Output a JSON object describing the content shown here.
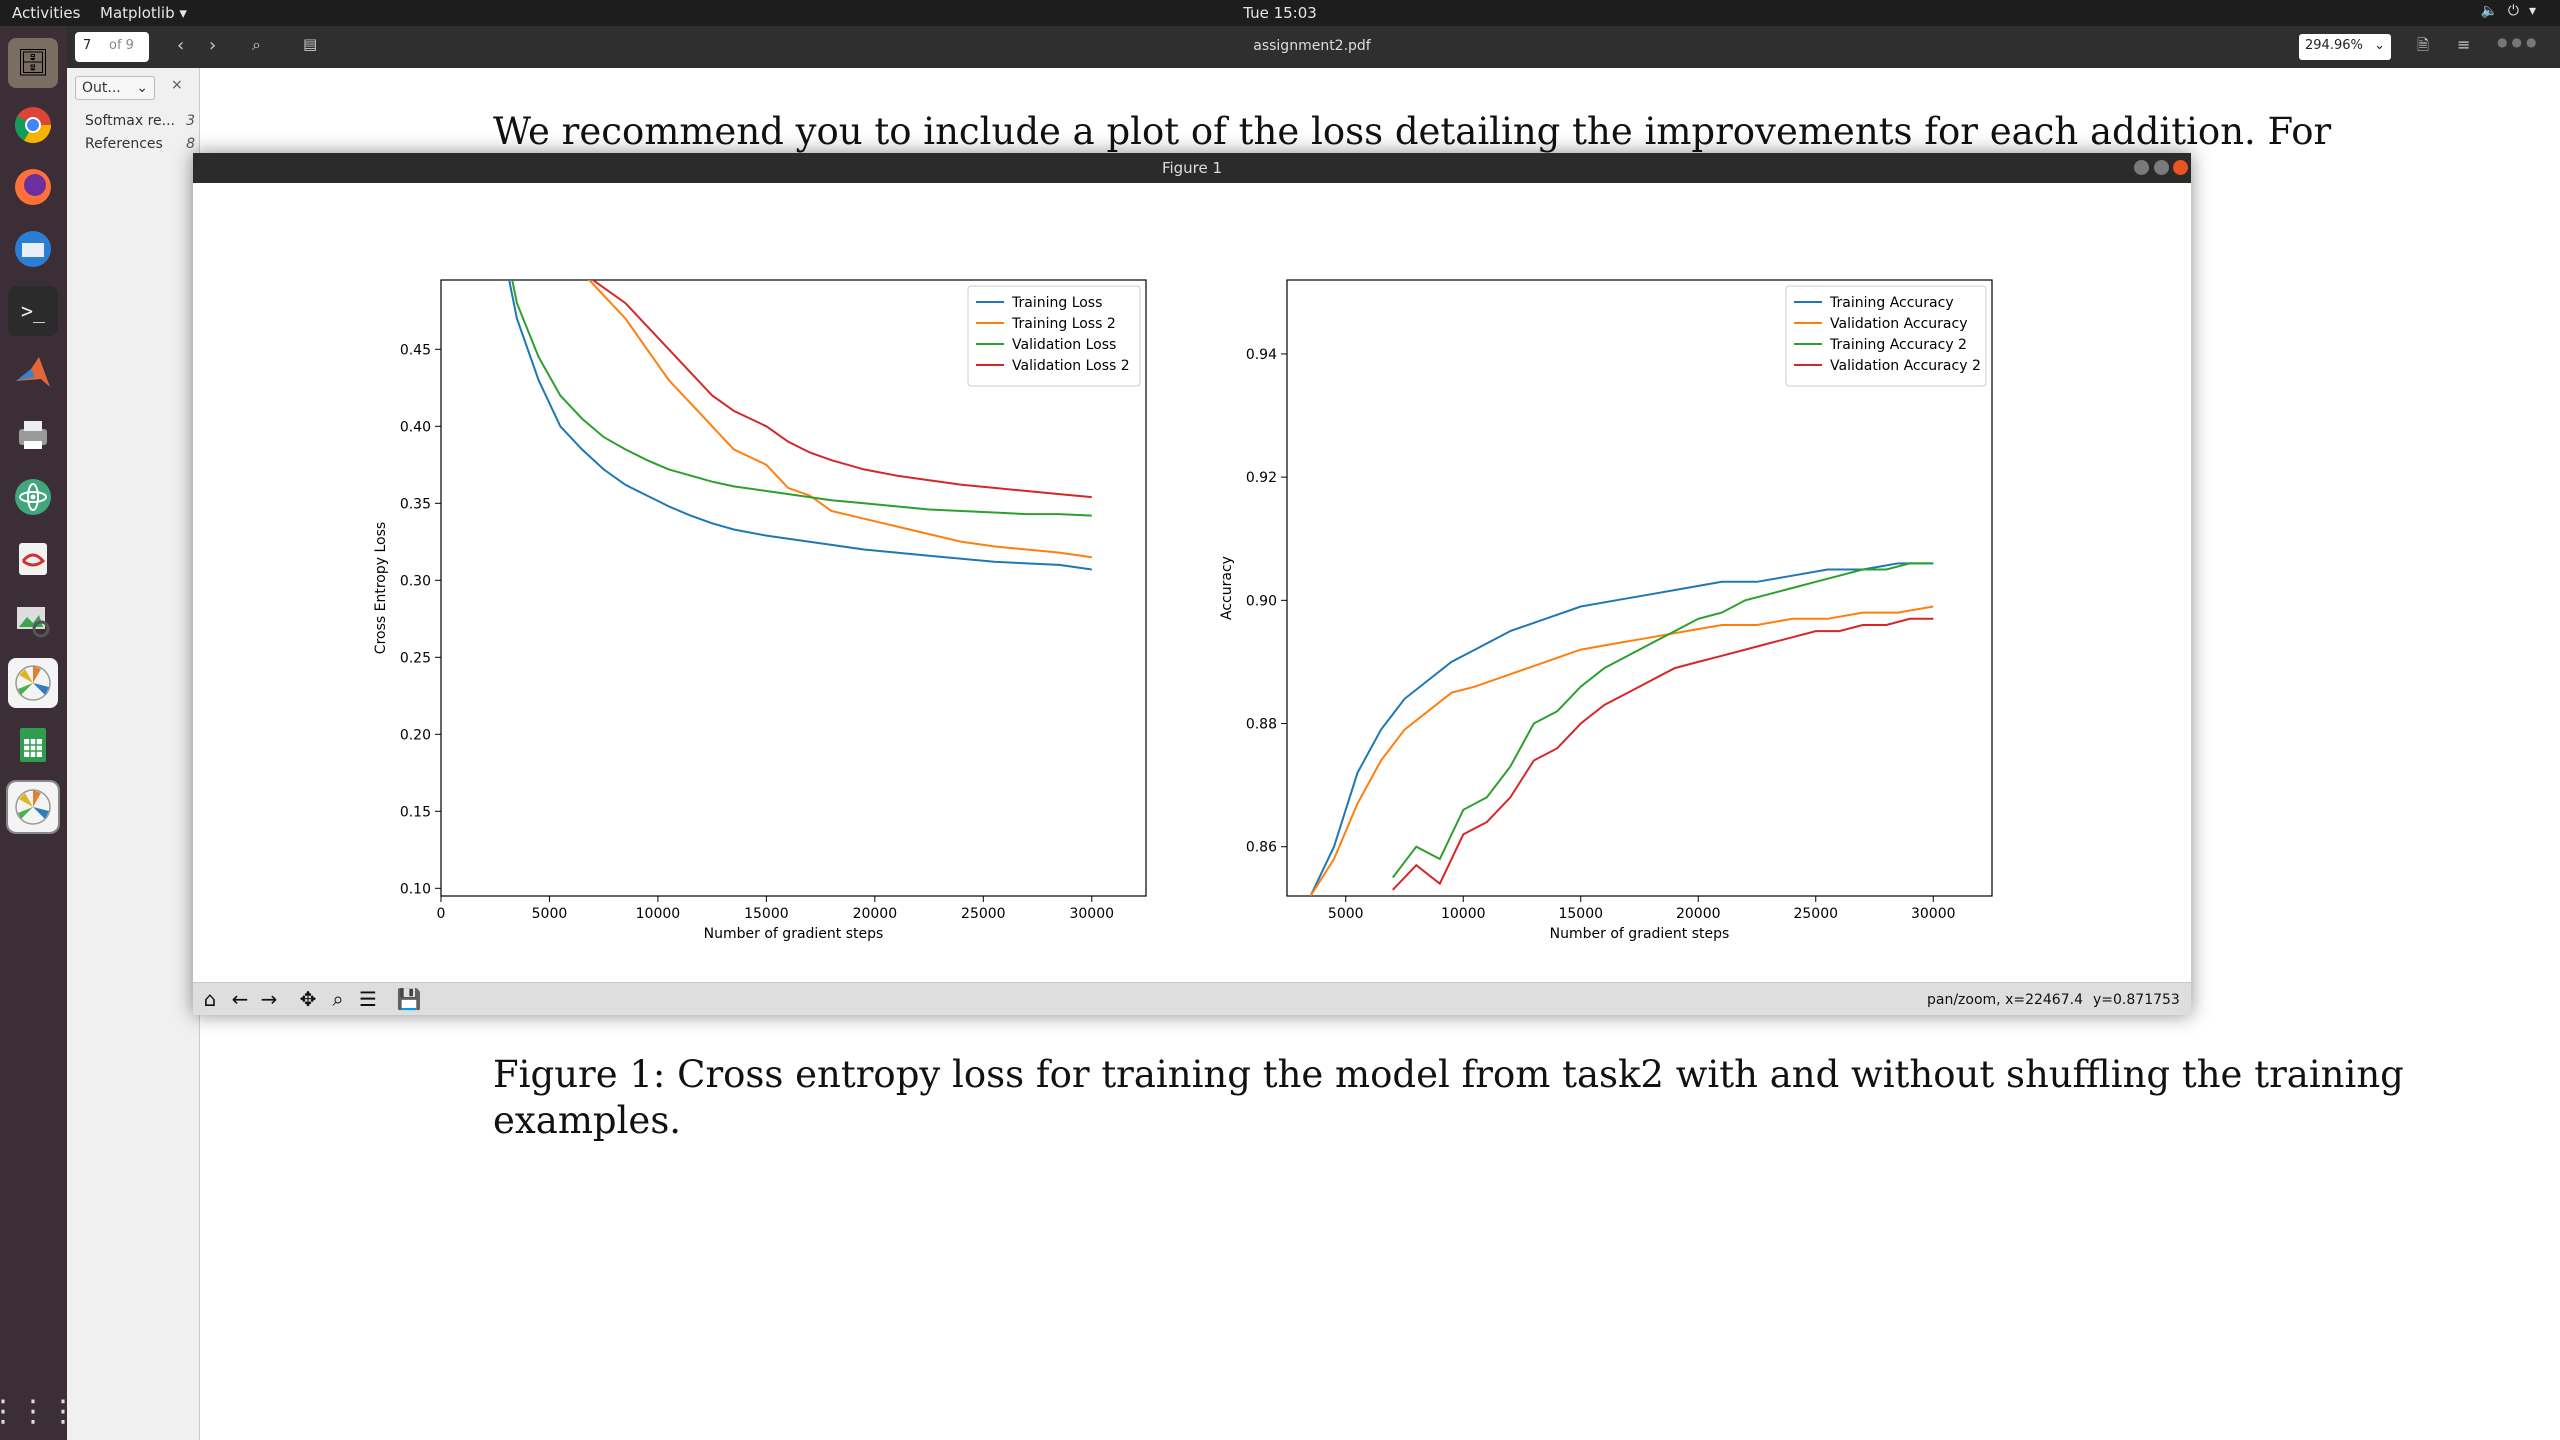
{
  "topbar": {
    "activities": "Activities",
    "app_menu": "Matplotlib ▾",
    "clock": "Tue 15:03"
  },
  "dock": {
    "items": [
      "files",
      "chrome",
      "firefox",
      "thunderbird",
      "terminal",
      "matlab",
      "printer",
      "atom",
      "pdf-viewer",
      "image-viewer",
      "matplotlib",
      "spreadsheet",
      "matplotlib-active"
    ]
  },
  "viewer": {
    "page_current": "7",
    "page_total": "of 9",
    "title": "assignment2.pdf",
    "zoom": "294.96%",
    "sidebar": {
      "tab": "Out...",
      "items": [
        {
          "label": "Softmax re...",
          "page": "3"
        },
        {
          "label": "References",
          "page": "8"
        }
      ]
    },
    "body_line": "We recommend you to include a plot of the loss detailing the improvements for each addition.  For",
    "caption_line1": "Figure 1:  Cross entropy loss for training the model from task2 with and without shuffling the training",
    "caption_line2": "examples."
  },
  "figure_window": {
    "title": "Figure 1",
    "status_mode": "pan/zoom, x=22467.4",
    "status_y": "y=0.871753"
  },
  "chart_data": [
    {
      "type": "line",
      "xlabel": "Number of gradient steps",
      "ylabel": "Cross Entropy Loss",
      "xlim": [
        0,
        32500
      ],
      "ylim": [
        0.095,
        0.495
      ],
      "xticks": [
        0,
        5000,
        10000,
        15000,
        20000,
        25000,
        30000
      ],
      "yticks": [
        0.1,
        0.15,
        0.2,
        0.25,
        0.3,
        0.35,
        0.4,
        0.45
      ],
      "legend": "top-right",
      "series": [
        {
          "name": "Training Loss",
          "color": "#1f77b4",
          "x": [
            2500,
            3500,
            4500,
            5500,
            6500,
            7500,
            8500,
            9500,
            10500,
            11500,
            12500,
            13500,
            15000,
            16500,
            18000,
            19500,
            21000,
            22500,
            24000,
            25500,
            27000,
            28500,
            30000
          ],
          "y": [
            0.54,
            0.47,
            0.43,
            0.4,
            0.385,
            0.372,
            0.362,
            0.355,
            0.348,
            0.342,
            0.337,
            0.333,
            0.329,
            0.326,
            0.323,
            0.32,
            0.318,
            0.316,
            0.314,
            0.312,
            0.311,
            0.31,
            0.307
          ]
        },
        {
          "name": "Training Loss 2",
          "color": "#ff7f0e",
          "x": [
            6500,
            7500,
            8500,
            9500,
            10500,
            11500,
            12500,
            13500,
            15000,
            16000,
            17000,
            18000,
            19500,
            21000,
            22500,
            24000,
            25500,
            27000,
            28500,
            30000
          ],
          "y": [
            0.5,
            0.485,
            0.47,
            0.45,
            0.43,
            0.415,
            0.4,
            0.385,
            0.375,
            0.36,
            0.355,
            0.345,
            0.34,
            0.335,
            0.33,
            0.325,
            0.322,
            0.32,
            0.318,
            0.315
          ]
        },
        {
          "name": "Validation Loss",
          "color": "#2ca02c",
          "x": [
            2500,
            3500,
            4500,
            5500,
            6500,
            7500,
            8500,
            9500,
            10500,
            11500,
            12500,
            13500,
            15000,
            16500,
            18000,
            19500,
            21000,
            22500,
            24000,
            25500,
            27000,
            28500,
            30000
          ],
          "y": [
            0.55,
            0.48,
            0.445,
            0.42,
            0.405,
            0.393,
            0.385,
            0.378,
            0.372,
            0.368,
            0.364,
            0.361,
            0.358,
            0.355,
            0.352,
            0.35,
            0.348,
            0.346,
            0.345,
            0.344,
            0.343,
            0.343,
            0.342
          ]
        },
        {
          "name": "Validation Loss 2",
          "color": "#d62728",
          "x": [
            6500,
            7500,
            8500,
            9500,
            10500,
            11500,
            12500,
            13500,
            15000,
            16000,
            17000,
            18000,
            19500,
            21000,
            22500,
            24000,
            25500,
            27000,
            28500,
            30000
          ],
          "y": [
            0.5,
            0.49,
            0.48,
            0.465,
            0.45,
            0.435,
            0.42,
            0.41,
            0.4,
            0.39,
            0.383,
            0.378,
            0.372,
            0.368,
            0.365,
            0.362,
            0.36,
            0.358,
            0.356,
            0.354
          ]
        }
      ]
    },
    {
      "type": "line",
      "xlabel": "Number of gradient steps",
      "ylabel": "Accuracy",
      "xlim": [
        2500,
        32500
      ],
      "ylim": [
        0.852,
        0.952
      ],
      "xticks": [
        5000,
        10000,
        15000,
        20000,
        25000,
        30000
      ],
      "yticks": [
        0.86,
        0.88,
        0.9,
        0.92,
        0.94
      ],
      "legend": "top-right",
      "series": [
        {
          "name": "Training Accuracy",
          "color": "#1f77b4",
          "x": [
            3500,
            4500,
            5500,
            6500,
            7500,
            8500,
            9500,
            10500,
            12000,
            13500,
            15000,
            16500,
            18000,
            19500,
            21000,
            22500,
            24000,
            25500,
            27000,
            28500,
            30000
          ],
          "y": [
            0.852,
            0.86,
            0.872,
            0.879,
            0.884,
            0.887,
            0.89,
            0.892,
            0.895,
            0.897,
            0.899,
            0.9,
            0.901,
            0.902,
            0.903,
            0.903,
            0.904,
            0.905,
            0.905,
            0.906,
            0.906
          ]
        },
        {
          "name": "Validation Accuracy",
          "color": "#ff7f0e",
          "x": [
            3500,
            4500,
            5500,
            6500,
            7500,
            8500,
            9500,
            10500,
            12000,
            13500,
            15000,
            16500,
            18000,
            19500,
            21000,
            22500,
            24000,
            25500,
            27000,
            28500,
            30000
          ],
          "y": [
            0.852,
            0.858,
            0.867,
            0.874,
            0.879,
            0.882,
            0.885,
            0.886,
            0.888,
            0.89,
            0.892,
            0.893,
            0.894,
            0.895,
            0.896,
            0.896,
            0.897,
            0.897,
            0.898,
            0.898,
            0.899
          ]
        },
        {
          "name": "Training Accuracy 2",
          "color": "#2ca02c",
          "x": [
            7000,
            8000,
            9000,
            10000,
            11000,
            12000,
            13000,
            14000,
            15000,
            16000,
            17000,
            18000,
            19000,
            20000,
            21000,
            22000,
            23000,
            24000,
            25000,
            26000,
            27000,
            28000,
            29000,
            30000
          ],
          "y": [
            0.855,
            0.86,
            0.858,
            0.866,
            0.868,
            0.873,
            0.88,
            0.882,
            0.886,
            0.889,
            0.891,
            0.893,
            0.895,
            0.897,
            0.898,
            0.9,
            0.901,
            0.902,
            0.903,
            0.904,
            0.905,
            0.905,
            0.906,
            0.906
          ]
        },
        {
          "name": "Validation Accuracy 2",
          "color": "#d62728",
          "x": [
            7000,
            8000,
            9000,
            10000,
            11000,
            12000,
            13000,
            14000,
            15000,
            16000,
            17000,
            18000,
            19000,
            20000,
            21000,
            22000,
            23000,
            24000,
            25000,
            26000,
            27000,
            28000,
            29000,
            30000
          ],
          "y": [
            0.853,
            0.857,
            0.854,
            0.862,
            0.864,
            0.868,
            0.874,
            0.876,
            0.88,
            0.883,
            0.885,
            0.887,
            0.889,
            0.89,
            0.891,
            0.892,
            0.893,
            0.894,
            0.895,
            0.895,
            0.896,
            0.896,
            0.897,
            0.897
          ]
        }
      ]
    }
  ]
}
